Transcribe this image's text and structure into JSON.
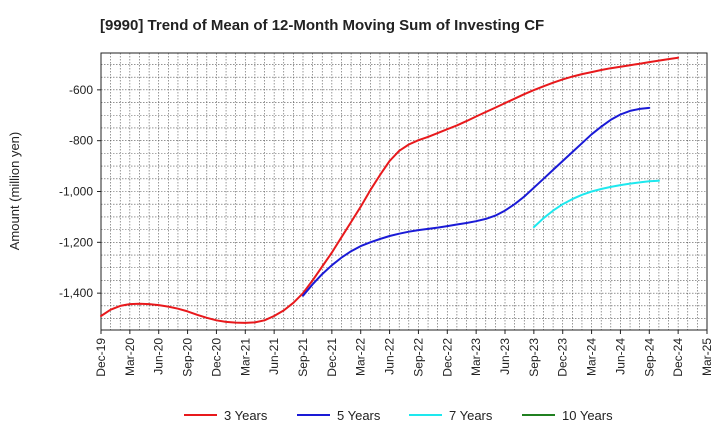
{
  "chart_data": {
    "type": "line",
    "title": "[9990]  Trend of Mean of 12-Month Moving Sum of Investing CF",
    "xlabel": "",
    "ylabel": "Amount (million yen)",
    "ylim": [
      -1545,
      -455
    ],
    "yticks": [
      -1400,
      -1200,
      -1000,
      -800,
      -600
    ],
    "ytick_labels": [
      "-1,400",
      "-1,200",
      "-1,000",
      "-800",
      "-600"
    ],
    "x_start": "Dec-19",
    "x_months": 63,
    "xticks": [
      "Dec-19",
      "Mar-20",
      "Jun-20",
      "Sep-20",
      "Dec-20",
      "Mar-21",
      "Jun-21",
      "Sep-21",
      "Dec-21",
      "Mar-22",
      "Jun-22",
      "Sep-22",
      "Dec-22",
      "Mar-23",
      "Jun-23",
      "Sep-23",
      "Dec-23",
      "Mar-24",
      "Jun-24",
      "Sep-24",
      "Dec-24",
      "Mar-25"
    ],
    "grid": true,
    "legend_position": "bottom",
    "series": [
      {
        "name": "3 Years",
        "color": "#e8191c",
        "start_index": 0,
        "values": [
          -1490,
          -1465,
          -1450,
          -1443,
          -1442,
          -1443,
          -1447,
          -1453,
          -1461,
          -1472,
          -1485,
          -1497,
          -1507,
          -1513,
          -1516,
          -1517,
          -1515,
          -1507,
          -1490,
          -1468,
          -1438,
          -1400,
          -1350,
          -1295,
          -1240,
          -1180,
          -1120,
          -1060,
          -995,
          -935,
          -880,
          -840,
          -815,
          -798,
          -785,
          -770,
          -755,
          -740,
          -723,
          -705,
          -687,
          -670,
          -652,
          -635,
          -617,
          -601,
          -586,
          -572,
          -559,
          -548,
          -538,
          -530,
          -522,
          -515,
          -509,
          -503,
          -497,
          -491,
          -485,
          -479,
          -474
        ]
      },
      {
        "name": "5 Years",
        "color": "#1a1ad6",
        "start_index": 21,
        "values": [
          -1410,
          -1365,
          -1325,
          -1290,
          -1260,
          -1235,
          -1215,
          -1200,
          -1187,
          -1175,
          -1166,
          -1158,
          -1152,
          -1147,
          -1142,
          -1136,
          -1130,
          -1124,
          -1117,
          -1108,
          -1095,
          -1075,
          -1050,
          -1020,
          -985,
          -950,
          -915,
          -880,
          -845,
          -810,
          -775,
          -745,
          -718,
          -697,
          -683,
          -675,
          -671
        ]
      },
      {
        "name": "7 Years",
        "color": "#1ee8ee",
        "start_index": 45,
        "values": [
          -1140,
          -1105,
          -1075,
          -1050,
          -1030,
          -1013,
          -1000,
          -990,
          -982,
          -975,
          -969,
          -964,
          -960,
          -958
        ]
      },
      {
        "name": "10 Years",
        "color": "#208020",
        "start_index": 0,
        "values": []
      }
    ]
  }
}
